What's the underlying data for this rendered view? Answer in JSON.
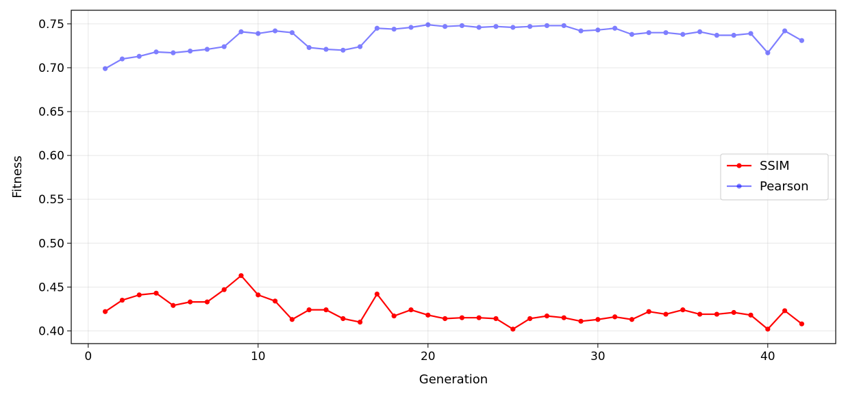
{
  "chart_data": {
    "type": "line",
    "title": "",
    "xlabel": "Generation",
    "ylabel": "Fitness",
    "xlim": [
      -1,
      44
    ],
    "ylim": [
      0.3855,
      0.7655
    ],
    "xticks": [
      0,
      10,
      20,
      30,
      40
    ],
    "yticks": [
      0.4,
      0.45,
      0.5,
      0.55,
      0.6,
      0.65,
      0.7,
      0.75
    ],
    "grid": true,
    "legend_position": "center-right",
    "x": [
      1,
      2,
      3,
      4,
      5,
      6,
      7,
      8,
      9,
      10,
      11,
      12,
      13,
      14,
      15,
      16,
      17,
      18,
      19,
      20,
      21,
      22,
      23,
      24,
      25,
      26,
      27,
      28,
      29,
      30,
      31,
      32,
      33,
      34,
      35,
      36,
      37,
      38,
      39,
      40,
      41,
      42
    ],
    "series": [
      {
        "name": "SSIM",
        "color": "#ff0000",
        "opacity": 1.0,
        "values": [
          0.422,
          0.435,
          0.441,
          0.443,
          0.429,
          0.433,
          0.433,
          0.447,
          0.463,
          0.441,
          0.434,
          0.413,
          0.424,
          0.424,
          0.414,
          0.41,
          0.442,
          0.417,
          0.424,
          0.418,
          0.414,
          0.415,
          0.415,
          0.414,
          0.402,
          0.414,
          0.417,
          0.415,
          0.411,
          0.413,
          0.416,
          0.413,
          0.422,
          0.419,
          0.424,
          0.419,
          0.419,
          0.421,
          0.418,
          0.402,
          0.423,
          0.408
        ]
      },
      {
        "name": "Pearson",
        "color": "#0000ff",
        "opacity": 0.5,
        "values": [
          0.699,
          0.71,
          0.713,
          0.718,
          0.717,
          0.719,
          0.721,
          0.724,
          0.741,
          0.739,
          0.742,
          0.74,
          0.723,
          0.721,
          0.72,
          0.724,
          0.745,
          0.744,
          0.746,
          0.749,
          0.747,
          0.748,
          0.746,
          0.747,
          0.746,
          0.747,
          0.748,
          0.748,
          0.742,
          0.743,
          0.745,
          0.738,
          0.74,
          0.74,
          0.738,
          0.741,
          0.737,
          0.737,
          0.739,
          0.717,
          0.742,
          0.731
        ]
      }
    ]
  }
}
